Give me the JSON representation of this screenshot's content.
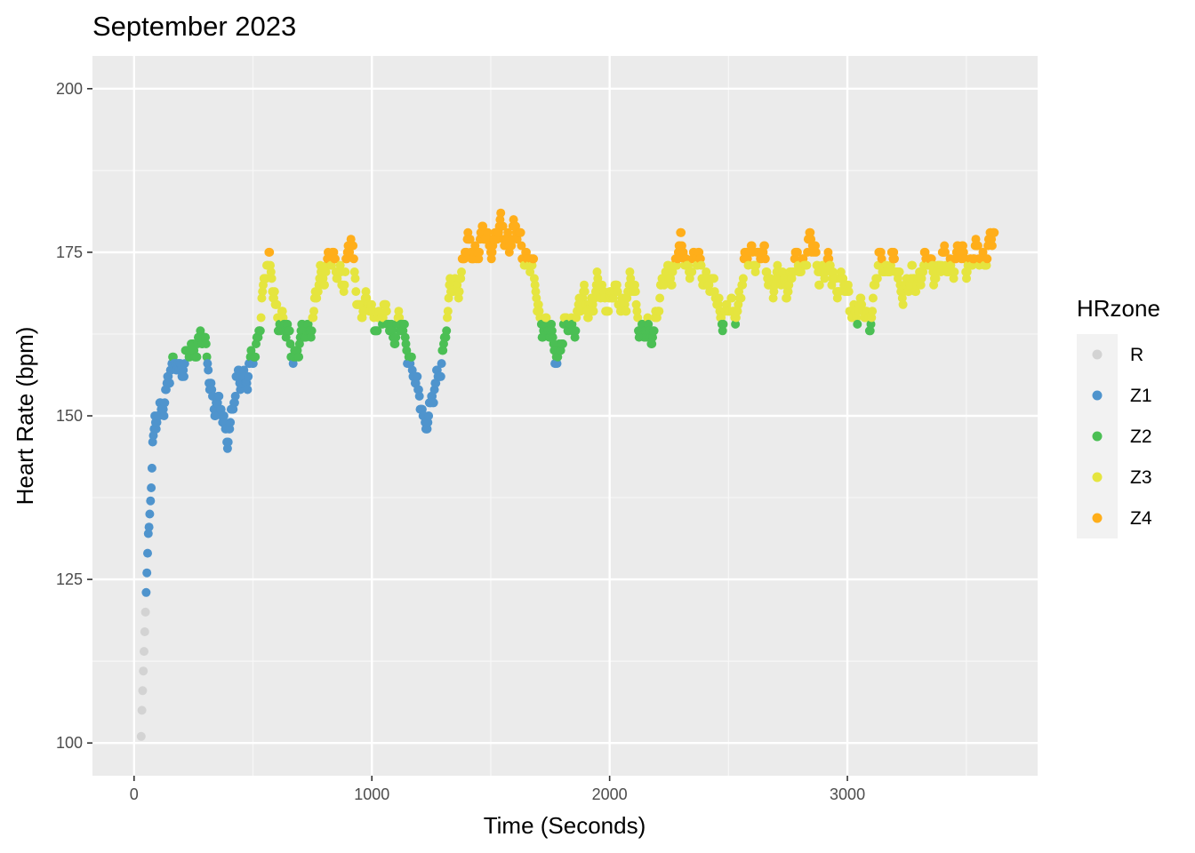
{
  "chart_data": {
    "type": "scatter",
    "title": "September 2023",
    "xlabel": "Time (Seconds)",
    "ylabel": "Heart Rate (bpm)",
    "xlim": [
      -175,
      3800
    ],
    "ylim": [
      95,
      205
    ],
    "xticks": [
      0,
      1000,
      2000,
      3000
    ],
    "xtick_labels": [
      "0",
      "1000",
      "2000",
      "3000"
    ],
    "yticks": [
      100,
      125,
      150,
      175,
      200
    ],
    "ytick_labels": [
      "100",
      "125",
      "150",
      "175",
      "200"
    ],
    "grid": true,
    "legend": {
      "title": "HRzone",
      "position": "right",
      "entries": [
        "R",
        "Z1",
        "Z2",
        "Z3",
        "Z4"
      ]
    },
    "zones": [
      {
        "name": "R",
        "color": "#d3d3d3",
        "min": 0,
        "max": 120.5
      },
      {
        "name": "Z1",
        "color": "#4f94cd",
        "min": 120.5,
        "max": 158.5
      },
      {
        "name": "Z2",
        "color": "#4bbf54",
        "min": 158.5,
        "max": 164.5
      },
      {
        "name": "Z3",
        "color": "#e5e53f",
        "min": 164.5,
        "max": 173.5
      },
      {
        "name": "Z4",
        "color": "#ffae1a",
        "min": 173.5,
        "max": 300
      }
    ],
    "series_keypoints": {
      "x": [
        30,
        45,
        60,
        80,
        100,
        120,
        150,
        180,
        210,
        250,
        280,
        310,
        340,
        360,
        390,
        420,
        450,
        480,
        510,
        540,
        560,
        600,
        640,
        680,
        720,
        760,
        800,
        820,
        850,
        880,
        910,
        940,
        980,
        1030,
        1080,
        1120,
        1160,
        1190,
        1220,
        1260,
        1300,
        1330,
        1400,
        1450,
        1500,
        1560,
        1620,
        1660,
        1700,
        1740,
        1780,
        1830,
        1870,
        1920,
        1960,
        2000,
        2060,
        2100,
        2140,
        2170,
        2200,
        2260,
        2300,
        2360,
        2400,
        2440,
        2480,
        2520,
        2560,
        2600,
        2650,
        2700,
        2750,
        2800,
        2840,
        2880,
        2920,
        2960,
        3000,
        3060,
        3100,
        3140,
        3180,
        3220,
        3260,
        3300,
        3340,
        3380,
        3420,
        3460,
        3500,
        3540,
        3580,
        3620
      ],
      "y": [
        101,
        118,
        132,
        145,
        150,
        153,
        155,
        159,
        157,
        161,
        162,
        158,
        152,
        150,
        148,
        152,
        156,
        157,
        158,
        170,
        173,
        167,
        162,
        160,
        162,
        167,
        172,
        176,
        171,
        172,
        176,
        168,
        166,
        165,
        164,
        163,
        160,
        153,
        150,
        152,
        161,
        168,
        175,
        176,
        177,
        178,
        177,
        174,
        167,
        162,
        160,
        164,
        166,
        168,
        169,
        168,
        168,
        169,
        163,
        161,
        167,
        173,
        175,
        173,
        172,
        168,
        166,
        165,
        171,
        176,
        173,
        170,
        171,
        173,
        176,
        173,
        172,
        171,
        168,
        165,
        166,
        174,
        173,
        171,
        169,
        172,
        173,
        173,
        173,
        174,
        174,
        174,
        175,
        177
      ]
    },
    "point_interval_seconds": 3
  }
}
